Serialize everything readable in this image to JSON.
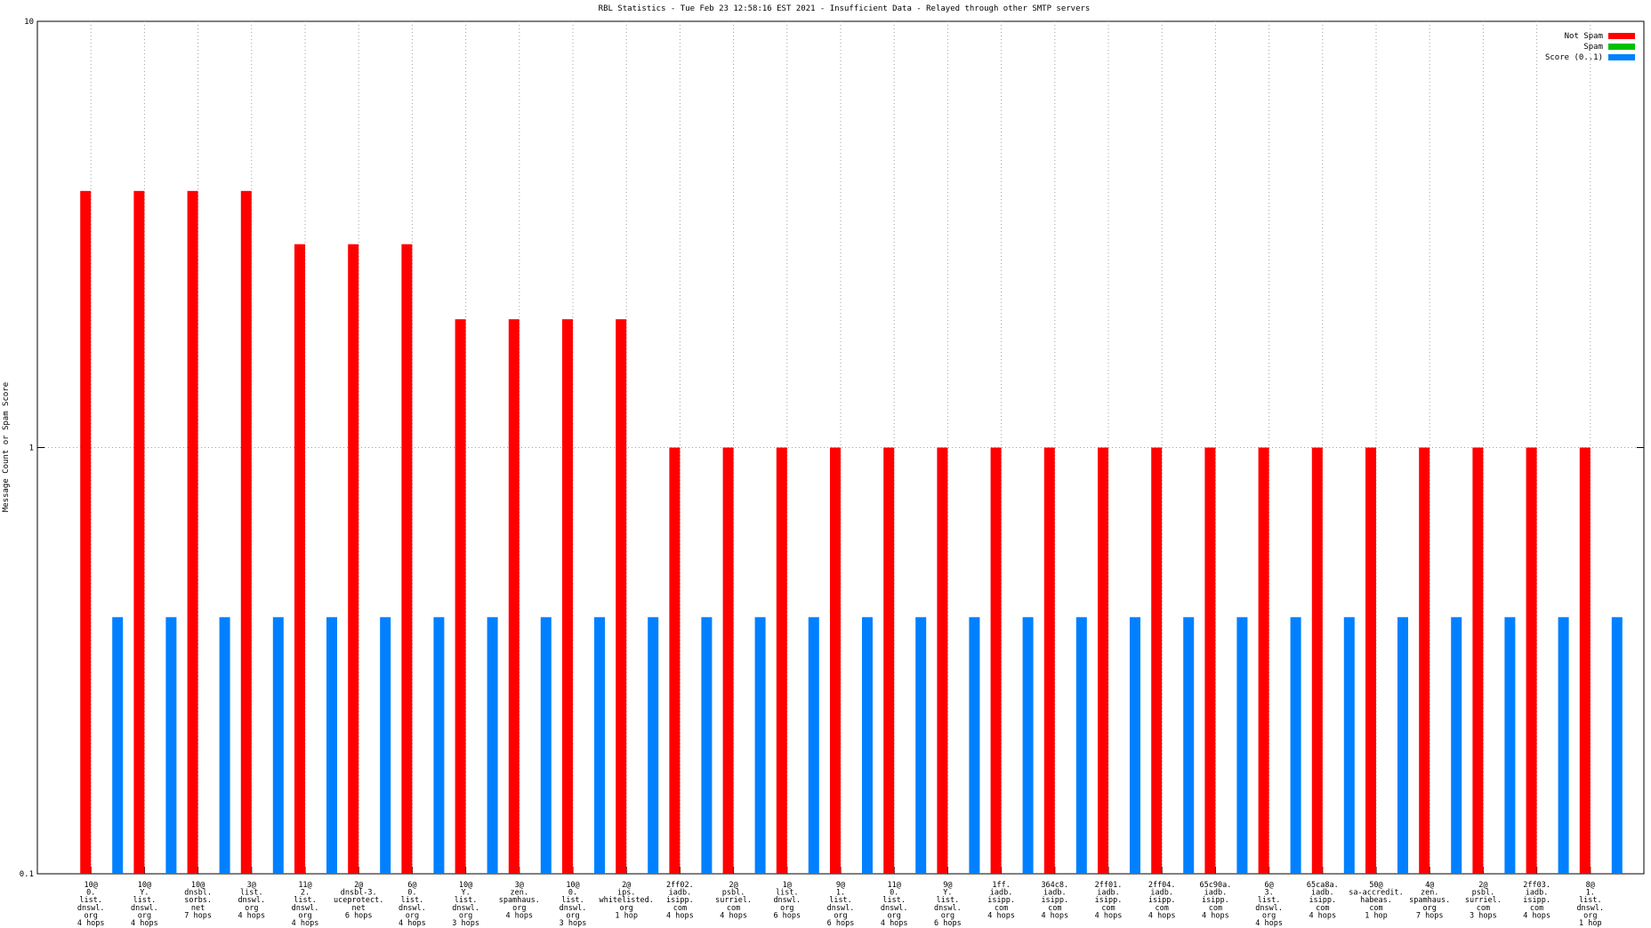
{
  "chart_data": {
    "type": "bar",
    "title": "RBL Statistics - Tue Feb 23 12:58:16 EST 2021 - Insufficient Data - Relayed through other SMTP servers",
    "y_label": "Message Count or Spam Score",
    "categories": [
      [
        "10@",
        "0.",
        "list.",
        "dnswl.",
        "org",
        "4 hops"
      ],
      [
        "10@",
        "Y.",
        "list.",
        "dnswl.",
        "org",
        "4 hops"
      ],
      [
        "10@",
        "dnsbl.",
        "sorbs.",
        "net",
        "7 hops"
      ],
      [
        "3@",
        "list.",
        "dnswl.",
        "org",
        "4 hops"
      ],
      [
        "11@",
        "2.",
        "list.",
        "dnswl.",
        "org",
        "4 hops"
      ],
      [
        "2@",
        "dnsbl-3.",
        "uceprotect.",
        "net",
        "6 hops"
      ],
      [
        "6@",
        "0.",
        "list.",
        "dnswl.",
        "org",
        "4 hops"
      ],
      [
        "10@",
        "Y.",
        "list.",
        "dnswl.",
        "org",
        "3 hops"
      ],
      [
        "3@",
        "zen.",
        "spamhaus.",
        "org",
        "4 hops"
      ],
      [
        "10@",
        "0.",
        "list.",
        "dnswl.",
        "org",
        "3 hops"
      ],
      [
        "2@",
        "ips.",
        "whitelisted.",
        "org",
        "1 hop"
      ],
      [
        "2ff02.",
        "iadb.",
        "isipp.",
        "com",
        "4 hops"
      ],
      [
        "2@",
        "psbl.",
        "surriel.",
        "com",
        "4 hops"
      ],
      [
        "1@",
        "list.",
        "dnswl.",
        "org",
        "6 hops"
      ],
      [
        "9@",
        "1.",
        "list.",
        "dnswl.",
        "org",
        "6 hops"
      ],
      [
        "11@",
        "0.",
        "list.",
        "dnswl.",
        "org",
        "4 hops"
      ],
      [
        "9@",
        "Y.",
        "list.",
        "dnswl.",
        "org",
        "6 hops"
      ],
      [
        "1ff.",
        "iadb.",
        "isipp.",
        "com",
        "4 hops"
      ],
      [
        "364c8.",
        "iadb.",
        "isipp.",
        "com",
        "4 hops"
      ],
      [
        "2ff01.",
        "iadb.",
        "isipp.",
        "com",
        "4 hops"
      ],
      [
        "2ff04.",
        "iadb.",
        "isipp.",
        "com",
        "4 hops"
      ],
      [
        "65c90a.",
        "iadb.",
        "isipp.",
        "com",
        "4 hops"
      ],
      [
        "6@",
        "3.",
        "list.",
        "dnswl.",
        "org",
        "4 hops"
      ],
      [
        "65ca8a.",
        "iadb.",
        "isipp.",
        "com",
        "4 hops"
      ],
      [
        "50@",
        "sa-accredit.",
        "habeas.",
        "com",
        "1 hop"
      ],
      [
        "4@",
        "zen.",
        "spamhaus.",
        "org",
        "7 hops"
      ],
      [
        "2@",
        "psbl.",
        "surriel.",
        "com",
        "3 hops"
      ],
      [
        "2ff03.",
        "iadb.",
        "isipp.",
        "com",
        "4 hops"
      ],
      [
        "8@",
        "1.",
        "list.",
        "dnswl.",
        "org",
        "1 hop"
      ]
    ],
    "series": [
      {
        "name": "Not Spam",
        "color": "#ff0000",
        "values": [
          4,
          4,
          4,
          4,
          3,
          3,
          3,
          2,
          2,
          2,
          2,
          1,
          1,
          1,
          1,
          1,
          1,
          1,
          1,
          1,
          1,
          1,
          1,
          1,
          1,
          1,
          1,
          1,
          1
        ]
      },
      {
        "name": "Spam",
        "color": "#00c000",
        "values": [
          null,
          null,
          null,
          null,
          null,
          null,
          null,
          null,
          null,
          null,
          null,
          null,
          null,
          null,
          null,
          null,
          null,
          null,
          null,
          null,
          null,
          null,
          null,
          null,
          null,
          null,
          null,
          null,
          null
        ]
      },
      {
        "name": "Score (0..1)",
        "color": "#0080ff",
        "values": [
          0.4,
          0.4,
          0.4,
          0.4,
          0.4,
          0.4,
          0.4,
          0.4,
          0.4,
          0.4,
          0.4,
          0.4,
          0.4,
          0.4,
          0.4,
          0.4,
          0.4,
          0.4,
          0.4,
          0.4,
          0.4,
          0.4,
          0.4,
          0.4,
          0.4,
          0.4,
          0.4,
          0.4,
          0.4
        ]
      }
    ],
    "ylim": [
      0.1,
      10
    ],
    "yticks": [
      0.1,
      1,
      10
    ],
    "log_y": true,
    "grid": true,
    "legend": "top-right"
  }
}
